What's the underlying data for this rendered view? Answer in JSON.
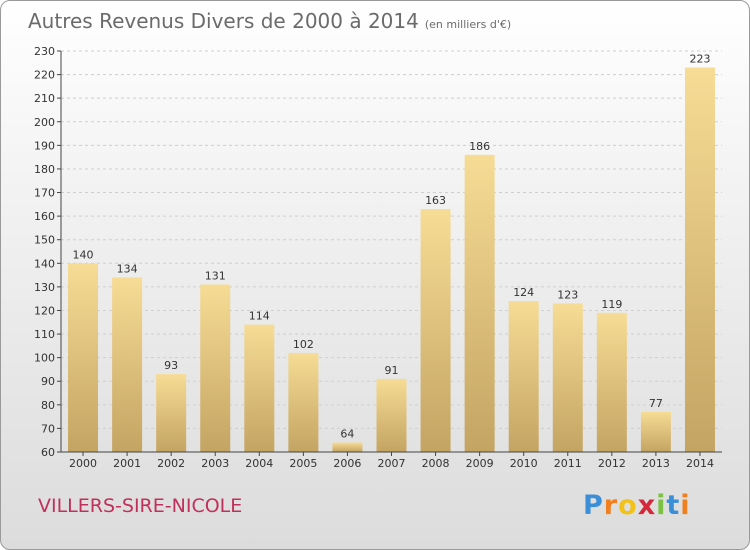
{
  "title": "Autres Revenus Divers de 2000 à 2014",
  "subtitle": "(en milliers d'€)",
  "city": "VILLERS-SIRE-NICOLE",
  "logo": {
    "letters": [
      "P",
      "r",
      "o",
      "x",
      "i",
      "t",
      "i"
    ],
    "colors": [
      "#3a8fd8",
      "#f07f1e",
      "#f2c21b",
      "#d6283a",
      "#7cc242",
      "#3a8fd8",
      "#f07f1e"
    ]
  },
  "colors": {
    "bar_light": "#f6dc95",
    "bar_dark": "#c4a462",
    "grid": "#cfcfcf",
    "axis": "#444444"
  },
  "chart_data": {
    "type": "bar",
    "categories": [
      "2000",
      "2001",
      "2002",
      "2003",
      "2004",
      "2005",
      "2006",
      "2007",
      "2008",
      "2009",
      "2010",
      "2011",
      "2012",
      "2013",
      "2014"
    ],
    "values": [
      140,
      134,
      93,
      131,
      114,
      102,
      64,
      91,
      163,
      186,
      124,
      123,
      119,
      77,
      223
    ],
    "ylim": [
      60,
      230
    ],
    "yticks": [
      60,
      70,
      80,
      90,
      100,
      110,
      120,
      130,
      140,
      150,
      160,
      170,
      180,
      190,
      200,
      210,
      220,
      230
    ],
    "grid": "horizontal dashed"
  }
}
